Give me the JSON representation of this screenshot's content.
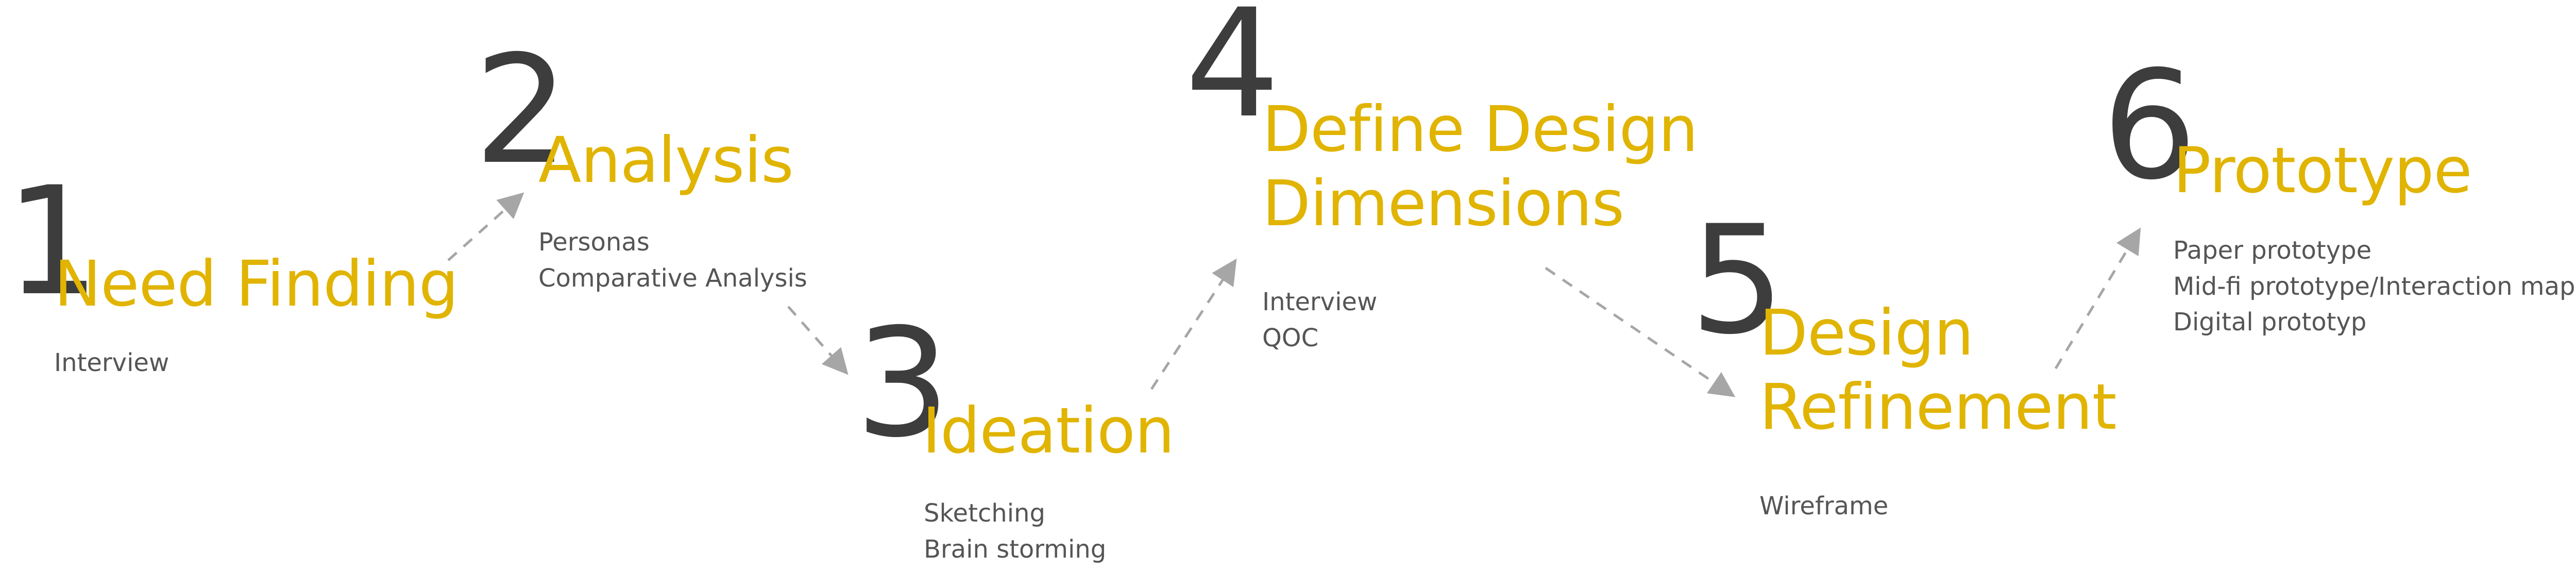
{
  "colors": {
    "number": "#3d3d3d",
    "title": "#e0b400",
    "subtext": "#555555",
    "arrow": "#a6a6a6"
  },
  "steps": [
    {
      "number": "1",
      "title": "Need Finding",
      "items": [
        "Interview"
      ]
    },
    {
      "number": "2",
      "title": "Analysis",
      "items": [
        "Personas",
        "Comparative Analysis"
      ]
    },
    {
      "number": "3",
      "title": "Ideation",
      "items": [
        "Sketching",
        "Brain storming"
      ]
    },
    {
      "number": "4",
      "title_lines": [
        "Define Design",
        "Dimensions"
      ],
      "items": [
        "Interview",
        "QOC"
      ]
    },
    {
      "number": "5",
      "title_lines": [
        "Design",
        "Refinement"
      ],
      "items": [
        "Wireframe"
      ]
    },
    {
      "number": "6",
      "title": "Prototype",
      "items": [
        "Paper prototype",
        "Mid-fi prototype/Interaction map",
        "Digital prototyp"
      ]
    }
  ]
}
